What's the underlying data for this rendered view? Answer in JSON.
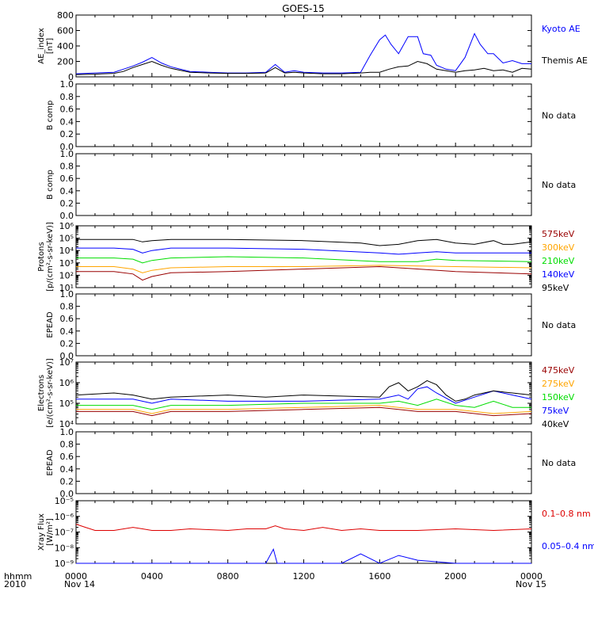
{
  "title": "GOES-15",
  "x_axis": {
    "ticks": [
      "0000",
      "0400",
      "0800",
      "1200",
      "1600",
      "2000",
      "0000"
    ],
    "start_date": "Nov 14",
    "end_date": "Nov 15",
    "row_label": "hhmm",
    "year": "2010",
    "range_hours": [
      0,
      24
    ]
  },
  "chart_data": [
    {
      "type": "line",
      "panel": "ae",
      "ylabel": "AE_index [nT]",
      "y_ticks": [
        "0",
        "200",
        "400",
        "600",
        "800"
      ],
      "ylim": [
        0,
        800
      ],
      "series": [
        {
          "name": "Kyoto AE",
          "color": "#0000ff",
          "x": [
            0,
            1,
            2,
            2.5,
            3,
            3.5,
            4,
            4.5,
            5,
            6,
            7,
            8,
            9,
            10,
            10.5,
            11,
            11.5,
            12,
            13,
            14,
            15,
            15.5,
            16,
            16.3,
            16.6,
            17,
            17.5,
            18,
            18.3,
            18.7,
            19,
            19.5,
            20,
            20.5,
            21,
            21.3,
            21.7,
            22,
            22.5,
            23,
            23.5,
            24
          ],
          "y": [
            40,
            50,
            60,
            100,
            140,
            190,
            250,
            180,
            130,
            70,
            60,
            50,
            50,
            60,
            160,
            60,
            80,
            60,
            50,
            50,
            60,
            280,
            480,
            540,
            420,
            300,
            520,
            520,
            300,
            280,
            150,
            100,
            80,
            250,
            560,
            420,
            300,
            300,
            180,
            210,
            170,
            170
          ]
        },
        {
          "name": "Themis AE",
          "color": "#000000",
          "x": [
            0,
            1,
            2,
            2.5,
            3,
            3.5,
            4,
            4.5,
            5,
            6,
            7,
            8,
            9,
            10,
            10.5,
            11,
            11.5,
            12,
            13,
            14,
            15,
            15.5,
            16,
            16.5,
            17,
            17.5,
            18,
            18.5,
            19,
            19.5,
            20,
            20.5,
            21,
            21.5,
            22,
            22.5,
            23,
            23.5,
            24
          ],
          "y": [
            30,
            35,
            45,
            70,
            120,
            160,
            200,
            150,
            110,
            60,
            50,
            45,
            45,
            50,
            120,
            50,
            60,
            50,
            40,
            40,
            50,
            60,
            60,
            100,
            130,
            140,
            200,
            170,
            100,
            80,
            60,
            80,
            90,
            110,
            80,
            90,
            60,
            110,
            100
          ]
        }
      ],
      "annotations": [
        "Kyoto AE",
        "Themis AE"
      ]
    },
    {
      "type": "line",
      "panel": "bcomp1",
      "ylabel": "B comp",
      "y_ticks": [
        "0.0",
        "0.2",
        "0.4",
        "0.6",
        "0.8",
        "1.0"
      ],
      "ylim": [
        0,
        1
      ],
      "series": [],
      "annotations": [
        "No data"
      ]
    },
    {
      "type": "line",
      "panel": "bcomp2",
      "ylabel": "B comp",
      "y_ticks": [
        "0.0",
        "0.2",
        "0.4",
        "0.6",
        "0.8",
        "1.0"
      ],
      "ylim": [
        0,
        1
      ],
      "series": [],
      "annotations": [
        "No data"
      ]
    },
    {
      "type": "line",
      "panel": "protons",
      "log_scale": true,
      "ylabel": "Protons [p/(cm²-s-sr-keV)]",
      "y_ticks": [
        "10¹",
        "10²",
        "10³",
        "10⁴",
        "10⁵",
        "10⁶"
      ],
      "ylim": [
        1,
        6
      ],
      "series": [
        {
          "name": "575keV",
          "color": "#990000",
          "x": [
            0,
            2,
            3,
            3.5,
            4,
            5,
            8,
            12,
            16,
            17,
            20,
            24
          ],
          "y": [
            2.3,
            2.3,
            2.1,
            1.6,
            1.9,
            2.2,
            2.3,
            2.5,
            2.7,
            2.6,
            2.3,
            2.1
          ]
        },
        {
          "name": "300keV",
          "color": "#ffa500",
          "x": [
            0,
            2,
            3,
            3.5,
            4,
            5,
            8,
            12,
            16,
            20,
            24
          ],
          "y": [
            2.7,
            2.7,
            2.5,
            2.2,
            2.4,
            2.6,
            2.7,
            2.7,
            2.8,
            2.7,
            2.6
          ]
        },
        {
          "name": "210keV",
          "color": "#00dd00",
          "x": [
            0,
            2,
            3,
            3.5,
            4,
            5,
            8,
            12,
            16,
            18,
            19,
            20,
            24
          ],
          "y": [
            3.4,
            3.4,
            3.3,
            3.0,
            3.2,
            3.4,
            3.5,
            3.4,
            3.1,
            3.1,
            3.3,
            3.2,
            3.1
          ]
        },
        {
          "name": "140keV",
          "color": "#0000ff",
          "x": [
            0,
            2,
            3,
            3.5,
            4,
            5,
            8,
            12,
            16,
            17,
            18,
            19,
            20,
            24
          ],
          "y": [
            4.2,
            4.2,
            4.1,
            3.8,
            4.0,
            4.2,
            4.2,
            4.1,
            3.8,
            3.7,
            3.8,
            3.9,
            3.8,
            3.8
          ]
        },
        {
          "name": "95keV",
          "color": "#000000",
          "x": [
            0,
            2,
            3,
            3.5,
            4,
            5,
            8,
            12,
            15,
            16,
            17,
            18,
            19,
            20,
            21,
            22,
            22.5,
            23,
            24
          ],
          "y": [
            4.9,
            4.9,
            4.9,
            4.7,
            4.8,
            4.9,
            4.9,
            4.8,
            4.6,
            4.4,
            4.5,
            4.8,
            4.9,
            4.6,
            4.5,
            4.8,
            4.5,
            4.5,
            4.7
          ]
        }
      ],
      "annotations": [
        "575keV",
        "300keV",
        "210keV",
        "140keV",
        "95keV"
      ]
    },
    {
      "type": "line",
      "panel": "epead1",
      "ylabel": "EPEAD",
      "y_ticks": [
        "0.0",
        "0.2",
        "0.4",
        "0.6",
        "0.8",
        "1.0"
      ],
      "ylim": [
        0,
        1
      ],
      "series": [],
      "annotations": [
        "No data"
      ]
    },
    {
      "type": "line",
      "panel": "electrons",
      "log_scale": true,
      "ylabel": "Electrons [e/(cm²-s-sr-keV)]",
      "y_ticks": [
        "10⁴",
        "10⁵",
        "10⁶",
        "10⁷"
      ],
      "ylim": [
        4,
        7
      ],
      "series": [
        {
          "name": "475keV",
          "color": "#990000",
          "x": [
            0,
            3,
            4,
            5,
            8,
            12,
            16,
            18,
            20,
            22,
            24
          ],
          "y": [
            4.6,
            4.6,
            4.4,
            4.6,
            4.6,
            4.7,
            4.8,
            4.6,
            4.6,
            4.4,
            4.5
          ]
        },
        {
          "name": "275keV",
          "color": "#ffa500",
          "x": [
            0,
            3,
            4,
            5,
            8,
            12,
            16,
            18,
            20,
            22,
            24
          ],
          "y": [
            4.7,
            4.7,
            4.5,
            4.7,
            4.7,
            4.8,
            4.9,
            4.7,
            4.7,
            4.5,
            4.6
          ]
        },
        {
          "name": "150keV",
          "color": "#00dd00",
          "x": [
            0,
            3,
            4,
            5,
            8,
            12,
            16,
            17,
            18,
            19,
            20,
            21,
            22,
            23,
            24
          ],
          "y": [
            4.9,
            4.9,
            4.7,
            4.9,
            4.9,
            5.0,
            5.0,
            5.1,
            4.9,
            5.2,
            4.9,
            4.8,
            5.1,
            4.8,
            4.8
          ]
        },
        {
          "name": "75keV",
          "color": "#0000ff",
          "x": [
            0,
            3,
            4,
            5,
            8,
            12,
            16,
            17,
            17.5,
            18,
            18.5,
            19,
            20,
            21,
            22,
            23,
            24
          ],
          "y": [
            5.2,
            5.2,
            5.0,
            5.2,
            5.1,
            5.1,
            5.2,
            5.4,
            5.2,
            5.7,
            5.8,
            5.5,
            5.0,
            5.3,
            5.6,
            5.4,
            5.2
          ]
        },
        {
          "name": "40keV",
          "color": "#000000",
          "x": [
            0,
            2,
            3,
            4,
            5,
            8,
            10,
            12,
            16,
            16.5,
            17,
            17.5,
            18,
            18.5,
            19,
            19.5,
            20,
            20.5,
            21,
            22,
            23,
            24
          ],
          "y": [
            5.4,
            5.5,
            5.4,
            5.2,
            5.3,
            5.4,
            5.3,
            5.4,
            5.3,
            5.8,
            6.0,
            5.6,
            5.8,
            6.1,
            5.9,
            5.4,
            5.1,
            5.2,
            5.4,
            5.6,
            5.5,
            5.4
          ]
        }
      ],
      "annotations": [
        "475keV",
        "275keV",
        "150keV",
        "75keV",
        "40keV"
      ]
    },
    {
      "type": "line",
      "panel": "epead2",
      "ylabel": "EPEAD",
      "y_ticks": [
        "0.0",
        "0.2",
        "0.4",
        "0.6",
        "0.8",
        "1.0"
      ],
      "ylim": [
        0,
        1
      ],
      "series": [],
      "annotations": [
        "No data"
      ]
    },
    {
      "type": "line",
      "panel": "xray",
      "log_scale": true,
      "ylabel": "Xray Flux [W/m²]",
      "y_ticks": [
        "10⁻⁹",
        "10⁻⁸",
        "10⁻⁷",
        "10⁻⁶",
        "10⁻⁵"
      ],
      "ylim": [
        -9,
        -5
      ],
      "series": [
        {
          "name": "0.1–0.8 nm",
          "color": "#dd0000",
          "x": [
            0,
            0.5,
            1,
            2,
            3,
            3.5,
            4,
            5,
            6,
            8,
            9,
            10,
            10.5,
            11,
            12,
            13,
            14,
            15,
            16,
            18,
            20,
            22,
            24
          ],
          "y": [
            -6.5,
            -6.7,
            -6.9,
            -6.9,
            -6.7,
            -6.8,
            -6.9,
            -6.9,
            -6.8,
            -6.9,
            -6.8,
            -6.8,
            -6.6,
            -6.8,
            -6.9,
            -6.7,
            -6.9,
            -6.8,
            -6.9,
            -6.9,
            -6.8,
            -6.9,
            -6.8
          ]
        },
        {
          "name": "0.05–0.4 nm",
          "color": "#0000ff",
          "x": [
            0,
            2,
            4,
            6,
            8,
            10,
            10.4,
            10.6,
            12,
            14,
            15,
            16,
            17,
            18,
            20,
            22,
            24
          ],
          "y": [
            -9,
            -9,
            -9,
            -9,
            -9,
            -9,
            -8.1,
            -9,
            -9,
            -9,
            -8.4,
            -9,
            -8.5,
            -8.8,
            -9,
            -9,
            -9
          ]
        }
      ],
      "annotations": [
        "0.1–0.8 nm",
        "0.05–0.4 nm"
      ]
    }
  ]
}
